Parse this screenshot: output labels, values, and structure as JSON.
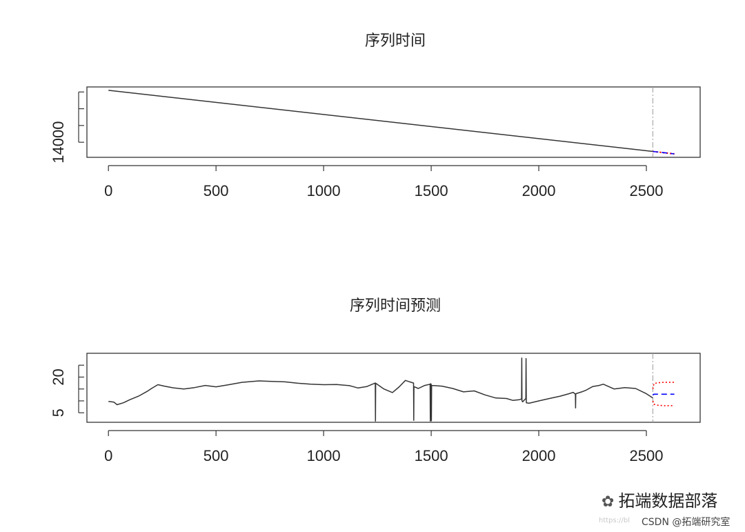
{
  "chart_data": [
    {
      "type": "line",
      "title": "序列时间",
      "xlabel": "",
      "ylabel": "",
      "xlim": [
        -100,
        2750
      ],
      "ylim": [
        12200,
        20600
      ],
      "x_ticks": [
        0,
        500,
        1000,
        1500,
        2000,
        2500
      ],
      "y_ticks": [
        14000,
        16000,
        18000,
        20000
      ],
      "y_tick_labels_shown": [
        "14000"
      ],
      "series": [
        {
          "x": [
            0,
            2530
          ],
          "values": [
            20200,
            12900
          ],
          "color": "#333333"
        }
      ],
      "forecast": {
        "origin": 2530,
        "x": [
          2530,
          2630
        ],
        "mean": [
          12900,
          12610
        ],
        "upper": [
          12920,
          12640
        ],
        "lower": [
          12880,
          12580
        ],
        "mean_color": "#0000ff",
        "interval_color": "#ff0000"
      }
    },
    {
      "type": "line",
      "title": "序列时间预测",
      "xlabel": "",
      "ylabel": "",
      "xlim": [
        -100,
        2750
      ],
      "ylim": [
        1,
        30
      ],
      "x_ticks": [
        0,
        500,
        1000,
        1500,
        2000,
        2500
      ],
      "y_ticks": [
        5,
        10,
        15,
        20,
        25
      ],
      "y_tick_labels_shown": [
        "5",
        "20"
      ],
      "series": [
        {
          "x": [
            0,
            25,
            40,
            70,
            100,
            140,
            180,
            200,
            230,
            260,
            300,
            350,
            400,
            450,
            500,
            560,
            620,
            700,
            760,
            820,
            880,
            940,
            1000,
            1060,
            1120,
            1160,
            1200,
            1240,
            1241,
            1242,
            1280,
            1320,
            1350,
            1380,
            1400,
            1418,
            1419,
            1420,
            1440,
            1470,
            1495,
            1496,
            1497,
            1500,
            1501,
            1502,
            1550,
            1600,
            1650,
            1700,
            1750,
            1800,
            1850,
            1880,
            1910,
            1920,
            1921,
            1922,
            1925,
            1940,
            1941,
            1942,
            1955,
            2000,
            2050,
            2100,
            2140,
            2160,
            2170,
            2171,
            2172,
            2200,
            2220,
            2250,
            2280,
            2300,
            2350,
            2400,
            2450,
            2500,
            2530
          ],
          "values": [
            9.8,
            9.5,
            8.4,
            9.2,
            10.5,
            12.0,
            14.0,
            15.2,
            16.8,
            16.2,
            15.5,
            15.0,
            15.6,
            16.5,
            15.9,
            16.8,
            17.8,
            18.4,
            18.2,
            18.0,
            17.4,
            17.0,
            16.8,
            16.9,
            16.4,
            15.4,
            16.0,
            17.5,
            1.5,
            17.4,
            15.0,
            13.5,
            15.8,
            18.6,
            18.0,
            17.5,
            1.8,
            16.0,
            15.2,
            16.5,
            17.0,
            1.5,
            17.2,
            17.0,
            1.6,
            16.5,
            16.2,
            15.2,
            13.8,
            14.2,
            12.5,
            11.2,
            11.0,
            10.2,
            10.5,
            10.8,
            28.0,
            10.0,
            9.6,
            11.0,
            27.8,
            9.2,
            9.0,
            10.0,
            11.0,
            12.0,
            13.0,
            13.6,
            12.8,
            7.0,
            13.0,
            13.8,
            14.5,
            16.0,
            16.5,
            17.0,
            15.0,
            15.6,
            15.2,
            13.0,
            11.2
          ],
          "color": "#333333"
        }
      ],
      "forecast": {
        "origin": 2530,
        "x": [
          2530,
          2535,
          2550,
          2580,
          2630
        ],
        "mean": [
          12.4,
          12.8,
          12.8,
          12.8,
          12.8
        ],
        "upper": [
          15.0,
          17.2,
          17.6,
          17.8,
          17.8
        ],
        "lower": [
          10.0,
          8.6,
          8.2,
          8.0,
          8.0
        ],
        "mean_color": "#0000ff",
        "interval_color": "#ff0000"
      }
    }
  ],
  "watermark": {
    "brand": "拓端数据部落",
    "csdn": "CSDN @拓端研究室",
    "url_fragment": "https://bl",
    "icon": "wechat-icon"
  }
}
